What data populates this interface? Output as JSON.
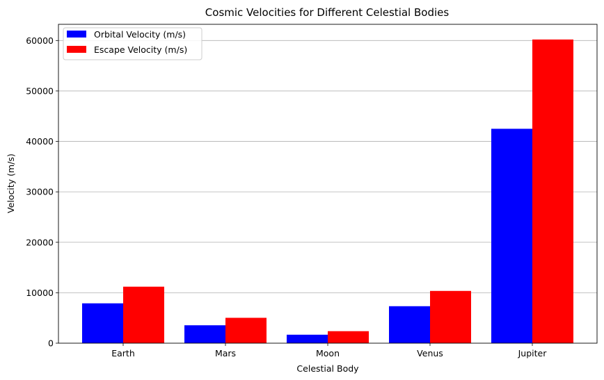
{
  "chart_data": {
    "type": "bar",
    "title": "Cosmic Velocities for Different Celestial Bodies",
    "xlabel": "Celestial Body",
    "ylabel": "Velocity (m/s)",
    "categories": [
      "Earth",
      "Mars",
      "Moon",
      "Venus",
      "Jupiter"
    ],
    "series": [
      {
        "name": "Orbital Velocity (m/s)",
        "color": "#0000ff",
        "values": [
          7900,
          3550,
          1680,
          7330,
          42500
        ]
      },
      {
        "name": "Escape Velocity (m/s)",
        "color": "#ff0000",
        "values": [
          11200,
          5030,
          2380,
          10360,
          60200
        ]
      }
    ],
    "ylim": [
      0,
      63210
    ],
    "yticks": [
      0,
      10000,
      20000,
      30000,
      40000,
      50000,
      60000
    ],
    "grid": "y-major",
    "legend_position": "top-left"
  }
}
